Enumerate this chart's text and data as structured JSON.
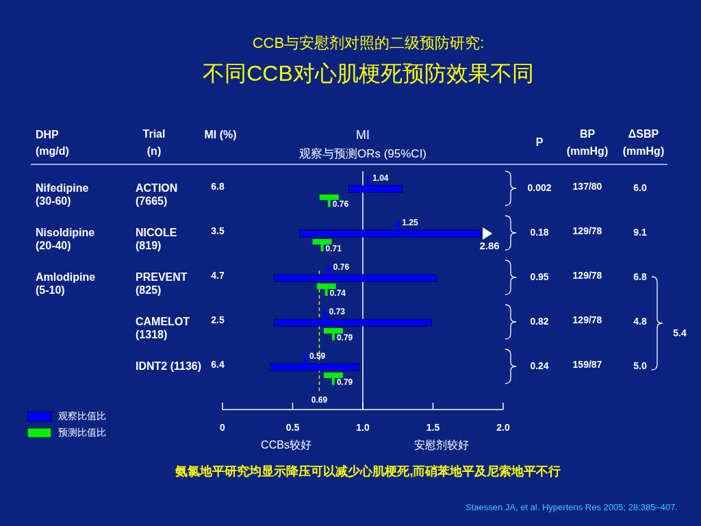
{
  "chart_data": {
    "type": "bar",
    "orientation": "horizontal",
    "title": "CCB与安慰剂对照的二级预防研究:",
    "subtitle": "不同CCB对心肌梗死预防效果不同",
    "categories": [
      "ACTION (7665)",
      "NICOLE (819)",
      "PREVENT (825)",
      "CAMELOT (1318)",
      "IDNT2 (1136)"
    ],
    "series": [
      {
        "type": "bar",
        "name": "观察比值比",
        "color": "#0000ff",
        "base": [
          0.9,
          0.55,
          0.37,
          0.37,
          0.34
        ],
        "values": [
          0.38,
          1.29,
          1.16,
          1.12,
          0.63
        ]
      },
      {
        "type": "scatter",
        "color": "#0000ff",
        "values": [
          1.04,
          1.25,
          0.76,
          0.73,
          0.59
        ],
        "value_labels": [
          "1.04",
          "1.25",
          "0.76",
          "0.73",
          "0.59"
        ]
      },
      {
        "type": "scatter",
        "name": "预测比值比",
        "color": "#00ee00",
        "values": [
          0.76,
          0.71,
          0.74,
          0.79,
          0.79
        ],
        "value_labels": [
          "0.76",
          "0.71",
          "0.74",
          "0.79",
          "0.79"
        ]
      }
    ],
    "xlim": [
      0,
      2.0
    ],
    "xticks": [
      0,
      0.5,
      {
        "value": 1,
        "label": "1.0"
      },
      1.5,
      {
        "value": 2,
        "label": "2.0"
      }
    ],
    "ref_lines": [
      {
        "axis": "x",
        "value": 1,
        "color": "#ffffff",
        "line_style": "solid"
      },
      {
        "axis": "x",
        "value": 0.69,
        "label": "0.69",
        "color": "#e8e000",
        "line_style": "dashed"
      }
    ],
    "legend": "bottom left",
    "grid": false,
    "annotations": [
      "MI",
      "观察与预测ORs (95%CI)",
      "DHP",
      "(mg/d)",
      "Trial",
      "(n)",
      "MI (%)",
      "P",
      "BP",
      "(mmHg)",
      "ΔSBP",
      "(mmHg)",
      "Nifedipine (30-60)",
      "Nisoldipine (20-40)",
      "Amlodipine (5-10)",
      "6.8",
      "3.5",
      "4.7",
      "2.5",
      "6.4",
      "0.002",
      "0.18",
      "0.95",
      "0.82",
      "0.24",
      "137/80",
      "129/78",
      "129/78",
      "129/78",
      "159/87",
      "6.0",
      "9.1",
      "6.8",
      "4.8",
      "5.0",
      "5.4",
      "2.86",
      "CCBs较好",
      "安慰剂较好",
      "氨氯地平研究均显示降压可以减少心肌梗死,而硝苯地平及尼索地平不行",
      "Staessen JA, et al. Hypertens Res 2005; 28:385–407."
    ]
  }
}
